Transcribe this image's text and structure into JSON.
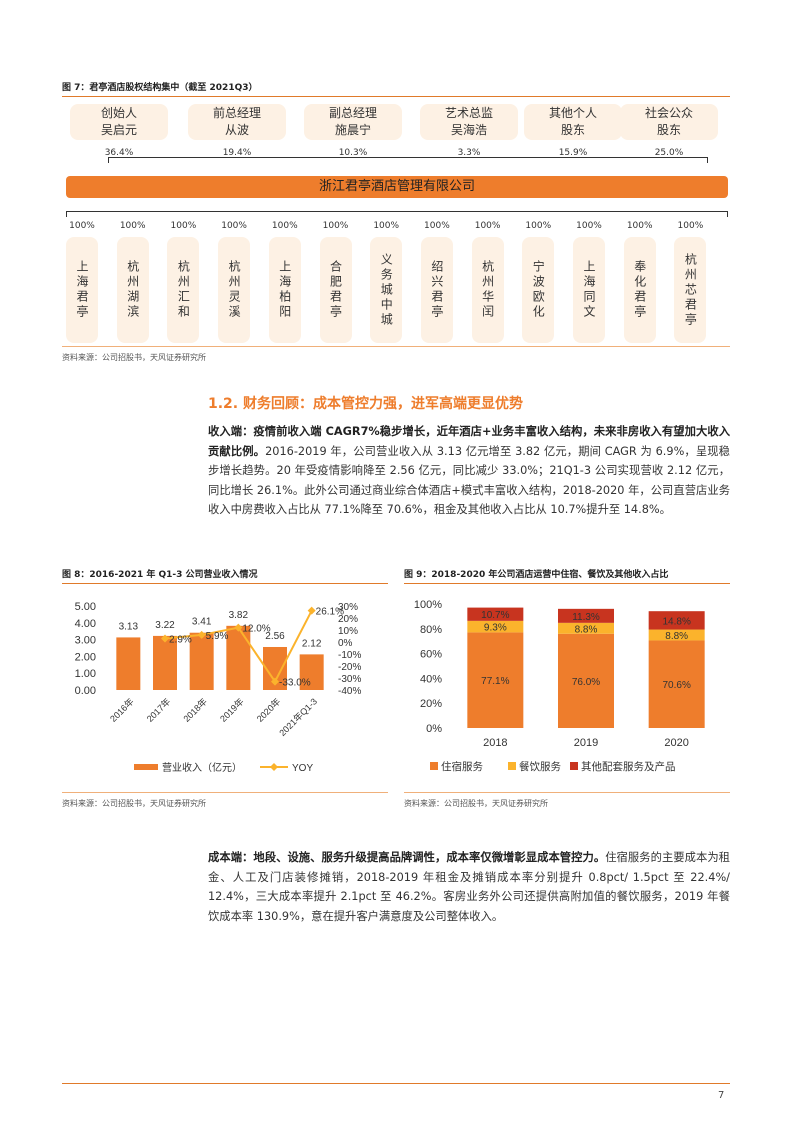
{
  "fig7": {
    "title": "图 7：君亭酒店股权结构集中（截至 2021Q3）",
    "holders": [
      {
        "line1": "创始人",
        "line2": "吴启元",
        "pct": "36.4%"
      },
      {
        "line1": "前总经理",
        "line2": "从波",
        "pct": "19.4%"
      },
      {
        "line1": "副总经理",
        "line2": "施晨宁",
        "pct": "10.3%"
      },
      {
        "line1": "艺术总监",
        "line2": "吴海浩",
        "pct": "3.3%"
      },
      {
        "line1": "其他个人",
        "line2": "股东",
        "pct": "15.9%"
      },
      {
        "line1": "社会公众",
        "line2": "股东",
        "pct": "25.0%"
      }
    ],
    "company": "浙江君亭酒店管理有限公司",
    "subsidiaries": [
      {
        "name": "上海君亭",
        "pct": "100%"
      },
      {
        "name": "杭州湖滨",
        "pct": "100%"
      },
      {
        "name": "杭州汇和",
        "pct": "100%"
      },
      {
        "name": "杭州灵溪",
        "pct": "100%"
      },
      {
        "name": "上海柏阳",
        "pct": "100%"
      },
      {
        "name": "合肥君亭",
        "pct": "100%"
      },
      {
        "name": "义务城中城",
        "pct": "100%"
      },
      {
        "name": "绍兴君亭",
        "pct": "100%"
      },
      {
        "name": "杭州华闰",
        "pct": "100%"
      },
      {
        "name": "宁波欧化",
        "pct": "100%"
      },
      {
        "name": "上海同文",
        "pct": "100%"
      },
      {
        "name": "奉化君亭",
        "pct": "100%"
      },
      {
        "name": "杭州芯君亭",
        "pct": "100%"
      }
    ],
    "source": "资料来源：公司招股书，天风证券研究所"
  },
  "section": {
    "heading": "1.2. 财务回顾：成本管控力强，进军高端更显优势",
    "para1_bold": "收入端：疫情前收入端 CAGR7%稳步增长，近年酒店+业务丰富收入结构，未来非房收入有望加大收入贡献比例。",
    "para1_rest": "2016-2019 年，公司营业收入从 3.13 亿元增至 3.82 亿元，期间 CAGR 为 6.9%，呈现稳步增长趋势。20 年受疫情影响降至 2.56 亿元，同比减少 33.0%；21Q1-3 公司实现营收 2.12 亿元，同比增长 26.1%。此外公司通过商业综合体酒店+模式丰富收入结构，2018-2020 年，公司直营店业务收入中房费收入占比从 77.1%降至 70.6%，租金及其他收入占比从 10.7%提升至 14.8%。",
    "para2_bold": "成本端：地段、设施、服务升级提高品牌调性，成本率仅微增彰显成本管控力。",
    "para2_rest": "住宿服务的主要成本为租金、人工及门店装修摊销，2018-2019 年租金及摊销成本率分别提升 0.8pct/ 1.5pct 至 22.4%/ 12.4%，三大成本率提升 2.1pct 至 46.2%。客房业务外公司还提供高附加值的餐饮服务，2019 年餐饮成本率 130.9%，意在提升客户满意度及公司整体收入。"
  },
  "fig8": {
    "title": "图 8：2016-2021 年 Q1-3 公司营业收入情况",
    "source": "资料来源：公司招股书，天风证券研究所"
  },
  "fig9": {
    "title": "图 9：2018-2020 年公司酒店运营中住宿、餐饮及其他收入占比",
    "source": "资料来源：公司招股书，天风证券研究所"
  },
  "page_number": "7",
  "colors": {
    "orange": "#ee7d2c",
    "yellow": "#fbb32c",
    "red": "#c8341f",
    "lightorange": "#fdf1e4"
  },
  "chart_data": [
    {
      "type": "bar",
      "categories": [
        "2016年",
        "2017年",
        "2018年",
        "2019年",
        "2020年",
        "2021年Q1-3"
      ],
      "series": [
        {
          "name": "营业收入（亿元）",
          "type": "bar",
          "axis": "left",
          "values": [
            3.13,
            3.22,
            3.41,
            3.82,
            2.56,
            2.12
          ],
          "labels": [
            "3.13",
            "3.22",
            "3.41",
            "3.82",
            "2.56",
            "2.12"
          ]
        },
        {
          "name": "YOY",
          "type": "line",
          "axis": "right",
          "values": [
            null,
            2.9,
            5.9,
            12.0,
            -33.0,
            26.1
          ],
          "labels": [
            "",
            "2.9%",
            "5.9%",
            "12.0%",
            "-33.0%",
            "26.1%"
          ]
        }
      ],
      "left_ticks": [
        "5.00",
        "4.00",
        "3.00",
        "2.00",
        "1.00",
        "0.00"
      ],
      "right_ticks": [
        "30%",
        "20%",
        "10%",
        "0%",
        "-10%",
        "-20%",
        "-30%",
        "-40%"
      ],
      "ylim": [
        0,
        5
      ],
      "y2lim": [
        -40,
        30
      ],
      "legend": "bottom"
    },
    {
      "type": "bar",
      "stacked": true,
      "categories": [
        "2018",
        "2019",
        "2020"
      ],
      "series": [
        {
          "name": "住宿服务",
          "values": [
            77.1,
            76.0,
            70.6
          ],
          "labels": [
            "77.1%",
            "76.0%",
            "70.6%"
          ],
          "color": "#ee7d2c"
        },
        {
          "name": "餐饮服务",
          "values": [
            9.3,
            8.8,
            8.8
          ],
          "labels": [
            "9.3%",
            "8.8%",
            "8.8%"
          ],
          "color": "#fbb32c"
        },
        {
          "name": "其他配套服务及产品",
          "values": [
            10.7,
            11.3,
            14.8
          ],
          "labels": [
            "10.7%",
            "11.3%",
            "14.8%"
          ],
          "color": "#c8341f"
        }
      ],
      "y_ticks": [
        "100%",
        "80%",
        "60%",
        "40%",
        "20%",
        "0%"
      ],
      "ylim": [
        0,
        100
      ],
      "legend": "bottom"
    }
  ]
}
